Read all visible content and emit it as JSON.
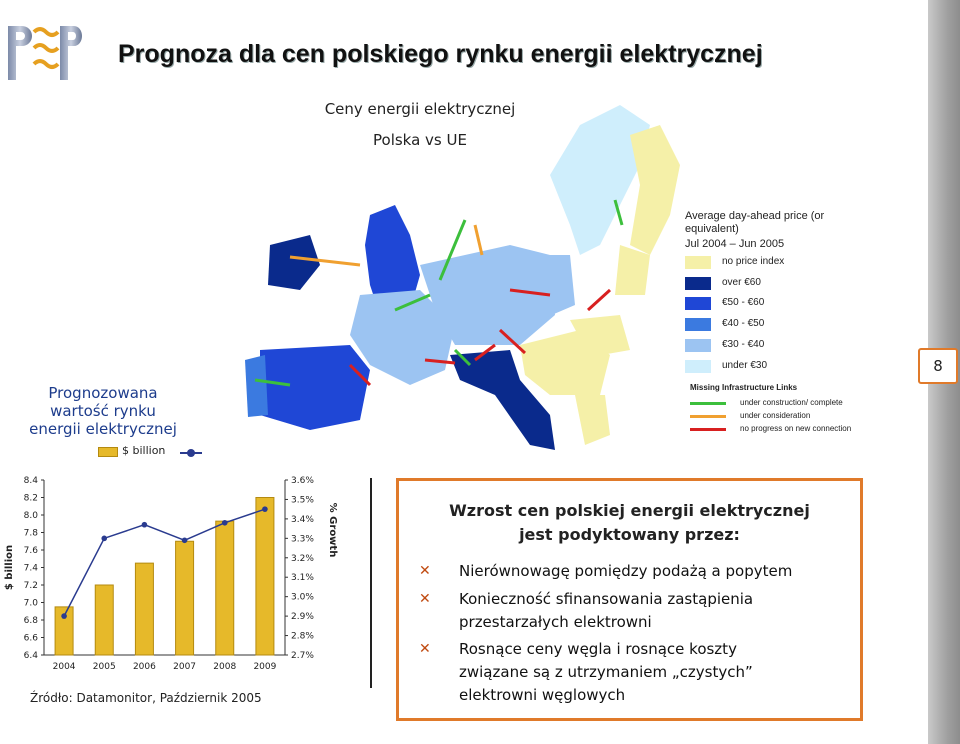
{
  "logo": {
    "letters": [
      "P",
      "E",
      "P"
    ]
  },
  "title": "Prognoza dla cen polskiego rynku energii elektrycznej",
  "page_number": "8",
  "map": {
    "title_line1": "Ceny energii elektrycznej",
    "title_line2": "Polska vs UE",
    "legend_title": "Average day-ahead price (or equivalent)",
    "legend_period": "Jul 2004 – Jun 2005",
    "legend_items": [
      {
        "label": "no price index",
        "color": "#f5f0a8"
      },
      {
        "label": "over €60",
        "color": "#0a2a8c"
      },
      {
        "label": "€50 - €60",
        "color": "#1f47d6"
      },
      {
        "label": "€40 - €50",
        "color": "#3b7ae0"
      },
      {
        "label": "€30 - €40",
        "color": "#9cc4f2"
      },
      {
        "label": "under €30",
        "color": "#cfeefc"
      }
    ],
    "links_title": "Missing Infrastructure Links",
    "links": [
      {
        "label": "under construction/ complete",
        "color": "#3cbf3c"
      },
      {
        "label": "under consideration",
        "color": "#f0a030"
      },
      {
        "label": "no progress on new connection",
        "color": "#d82020"
      }
    ]
  },
  "forecast_label": [
    "Prognozowana",
    "wartość rynku",
    "energii elektrycznej"
  ],
  "chart_data": {
    "type": "bar",
    "categories": [
      "2004",
      "2005",
      "2006",
      "2007",
      "2008",
      "2009"
    ],
    "series": [
      {
        "name": "$ billion",
        "type": "bar",
        "axis": "left",
        "values": [
          6.95,
          7.2,
          7.45,
          7.7,
          7.93,
          8.2
        ],
        "color": "#e6b92a"
      },
      {
        "name": "% Growth",
        "type": "line",
        "axis": "right",
        "values": [
          2.9,
          3.3,
          3.37,
          3.29,
          3.38,
          3.45
        ],
        "color": "#2a3b8f"
      }
    ],
    "ylabel": "$ billion",
    "ylabel_right": "% Growth",
    "ylim": [
      6.4,
      8.4
    ],
    "ylim_right": [
      2.7,
      3.6
    ],
    "yticks": [
      "6.4",
      "6.6",
      "6.8",
      "7.0",
      "7.2",
      "7.4",
      "7.6",
      "7.8",
      "8.0",
      "8.2",
      "8.4"
    ],
    "yticks_right": [
      "2.7%",
      "2.8%",
      "2.9%",
      "3.0%",
      "3.1%",
      "3.2%",
      "3.3%",
      "3.4%",
      "3.5%",
      "3.6%"
    ],
    "grid": false
  },
  "source": "Źródło: Datamonitor, Październik 2005",
  "info": {
    "title_lines": [
      "Wzrost cen polskiej energii elektrycznej",
      "jest podyktowany przez:"
    ],
    "bullet_symbol": "✕",
    "items": [
      {
        "lines": [
          "Nierównowagę pomiędzy podażą a popytem"
        ]
      },
      {
        "lines": [
          "Konieczność sfinansowania zastąpienia",
          "przestarzałych elektrowni"
        ]
      },
      {
        "lines": [
          "Rosnące ceny węgla i rosnące koszty",
          "związane są z utrzymaniem „czystych”",
          "elektrowni węglowych"
        ]
      }
    ]
  }
}
